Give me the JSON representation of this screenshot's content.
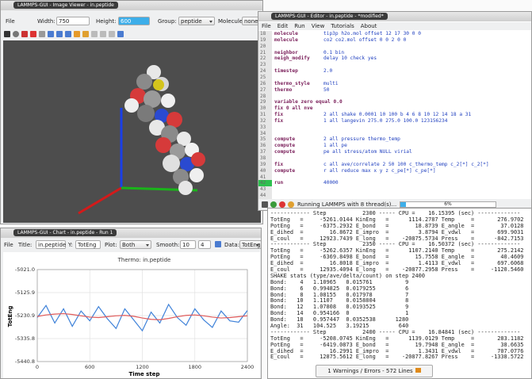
{
  "viewer": {
    "title": "LAMMPS-GUI - Image Viewer - in.peptide",
    "menu": "File",
    "width_label": "Width:",
    "width": "750",
    "height_label": "Height:",
    "height": "600",
    "group_label": "Group:",
    "group": "peptide",
    "molecule_label": "Molecule:",
    "molecule": "none"
  },
  "editor": {
    "title": "LAMMPS-GUI - Editor - in.peptide - *modified*",
    "menu": [
      "File",
      "Edit",
      "Run",
      "View",
      "Tutorials",
      "About"
    ],
    "lines": [
      {
        "n": 18,
        "cmd": "molecule",
        "args": "tip3p h2o.mol offset 12 17 30 0 0"
      },
      {
        "n": 19,
        "cmd": "molecule",
        "args": "co2 co2.mol offset 0 0 2 0 0"
      },
      {
        "n": 20
      },
      {
        "n": 21,
        "cmd": "neighbor",
        "args": "0.1 bin"
      },
      {
        "n": 22,
        "cmd": "neigh_modify",
        "args": "delay 10 check yes"
      },
      {
        "n": 23
      },
      {
        "n": 24,
        "cmd": "timestep",
        "args": "2.0"
      },
      {
        "n": 25
      },
      {
        "n": 26,
        "cmd": "thermo_style",
        "args": "multi"
      },
      {
        "n": 27,
        "cmd": "thermo",
        "args": "50"
      },
      {
        "n": 28
      },
      {
        "n": 29,
        "cmd": "variable zero equal 0.0"
      },
      {
        "n": 30,
        "cmd": "fix 0 all nve"
      },
      {
        "n": 31,
        "cmd": "fix",
        "args": "2 all shake 0.0001 10 100 b 4 6 8 10 12 14 18 a 31"
      },
      {
        "n": 32,
        "cmd": "fix",
        "args": "1 all langevin 275.0 275.0 100.0 123156234"
      },
      {
        "n": 33
      },
      {
        "n": 34
      },
      {
        "n": 35,
        "cmd": "compute",
        "args": "2 all pressure thermo_temp"
      },
      {
        "n": 36,
        "cmd": "compute",
        "args": "1 all pe"
      },
      {
        "n": 37,
        "cmd": "compute",
        "args": "pe all stress/atom NULL virial"
      },
      {
        "n": 38
      },
      {
        "n": 39,
        "cmd": "fix",
        "args": "c all ave/correlate 2 50 100 c_thermo_temp c_2[*] c_2[*]"
      },
      {
        "n": 40,
        "cmd": "compute",
        "args": "r all reduce max x y z c_pe[*] c_pe[*]"
      },
      {
        "n": 41
      },
      {
        "n": 42,
        "cmd": "run",
        "args": "40000",
        "current": true
      },
      {
        "n": 43
      },
      {
        "n": 44
      }
    ],
    "status": "Running LAMMPS with 8 thread(s)...",
    "progress": {
      "value": 6,
      "label": "6%"
    }
  },
  "log": {
    "lines": [
      "------------ Step           2300 ----- CPU =    16.15395 (sec) -------------",
      "TotEng   =     -5261.0144 KinEng   =      1114.2787 Temp     =       276.9702",
      "PotEng   =     -6375.2932 E_bond   =        18.8739 E_angle  =        37.0128",
      "E_dihed  =        16.8672 E_impro  =         3.8794 E_vdwl   =       699.9031",
      "E_coul   =     12923.7439 E_long   =    -20875.5734 Press    =      -842.7153",
      "------------ Step           2350 ----- CPU =    16.50372 (sec) -------------",
      "TotEng   =     -5262.6357 KinEng   =      1107.2140 Temp     =       275.2142",
      "PotEng   =     -6369.8498 E_bond   =        15.7558 E_angle  =        40.4609",
      "E_dihed  =        16.8018 E_impro  =         1.4113 E_vdwl   =       697.6068",
      "E_coul   =     12935.4094 E_long   =    -20877.2958 Press    =     -1120.5460",
      "SHAKE stats (type/ave/delta/count) on step 2400",
      "Bond:    4   1.10965   0.015761          9",
      "Bond:    6   0.994825  0.0179255         6",
      "Bond:    8   1.08155   0.017978          7",
      "Bond:   10   1.1107    0.0158804         8",
      "Bond:   12   1.07808   0.0193525         9",
      "Bond:   14   0.954166  0                 1",
      "Bond:   18   0.957447  0.0352538      1280",
      "Angle:  31   104.525   3.19215         640",
      "------------ Step           2400 ----- CPU =    16.84841 (sec) -------------",
      "TotEng   =     -5208.0745 KinEng   =      1139.0129 Temp     =       283.1182",
      "PotEng   =     -6419.0873 E_bond   =        19.7948 E_angle  =        38.6635",
      "E_dihed  =        16.2991 E_impro  =         1.3431 E_vdwl   =       707.0776",
      "E_coul   =     12875.5612 E_long   =    -20877.8267 Press    =     -1338.5722"
    ],
    "footer": "1 Warnings / Errors - 572 Lines"
  },
  "chart_window": {
    "title": "LAMMPS-GUI - Chart - in.peptide - Run 1",
    "menu": "File",
    "title_label": "Title:",
    "title_value": "in.peptide",
    "y_label": "Y:",
    "y_value": "TotEng",
    "plot_label": "Plot:",
    "plot_value": "Both",
    "smooth_label": "Smooth:",
    "smooth_a": "10",
    "smooth_b": "4",
    "data_label": "Data:",
    "data_value": "TotEng"
  },
  "chart_data": {
    "type": "line",
    "title": "Thermo: in.peptide",
    "xlabel": "Time step",
    "ylabel": "TotEng",
    "x": [
      0,
      100,
      200,
      300,
      400,
      500,
      600,
      700,
      800,
      900,
      1000,
      1100,
      1200,
      1300,
      1400,
      1500,
      1600,
      1700,
      1800,
      1900,
      2000,
      2100,
      2200,
      2300,
      2400
    ],
    "series": [
      {
        "color": "#3f82d9",
        "values": [
          -5240,
          -5185,
          -5265,
          -5200,
          -5280,
          -5210,
          -5255,
          -5190,
          -5245,
          -5290,
          -5200,
          -5250,
          -5300,
          -5215,
          -5265,
          -5180,
          -5240,
          -5275,
          -5200,
          -5250,
          -5285,
          -5210,
          -5255,
          -5261,
          -5208
        ]
      },
      {
        "color": "#e05a5a",
        "values": [
          -5235,
          -5228,
          -5224,
          -5222,
          -5226,
          -5232,
          -5238,
          -5240,
          -5236,
          -5232,
          -5230,
          -5234,
          -5242,
          -5248,
          -5250,
          -5244,
          -5236,
          -5230,
          -5228,
          -5232,
          -5238,
          -5242,
          -5240,
          -5236,
          -5232
        ]
      }
    ],
    "xlim": [
      0,
      2400
    ],
    "xticks": [
      0,
      600,
      1200,
      1800,
      2400
    ],
    "ylim": [
      -5440.8,
      -5021
    ],
    "yticks": [
      {
        "value": -5021,
        "label": "-5021.0"
      },
      -5125.9,
      -5230.9,
      -5335.8,
      -5440.8
    ],
    "grid": true
  }
}
